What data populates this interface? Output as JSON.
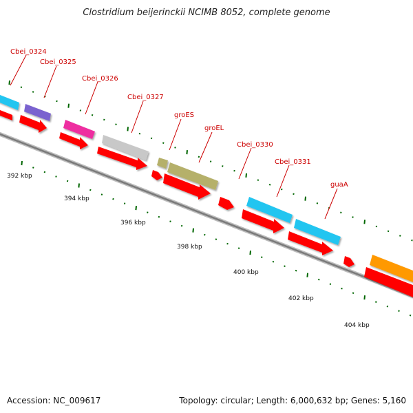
{
  "title": "Clostridium beijerinckii NCIMB 8052, complete genome",
  "footer": {
    "accession": "Accession: NC_009617",
    "summary": "Topology: circular; Length: 6,000,632 bp; Genes: 5,160"
  },
  "gene_labels": [
    "Cbei_0324",
    "Cbei_0325",
    "Cbei_0326",
    "Cbei_0327",
    "groES",
    "groEL",
    "Cbei_0330",
    "Cbei_0331",
    "guaA"
  ],
  "position_labels": [
    "392 kbp",
    "394 kbp",
    "396 kbp",
    "398 kbp",
    "400 kbp",
    "402 kbp",
    "404 kbp"
  ],
  "colors": {
    "cds": "#ff0000",
    "backbone": "#8a8a8a",
    "tick": "#006600",
    "label": "#cc0000",
    "cyan": "#22c5f0",
    "purple": "#7a62cf",
    "magenta": "#ee2ea0",
    "grey": "#c8c8c8",
    "olive": "#b5b06a",
    "orange": "#ff9900"
  }
}
